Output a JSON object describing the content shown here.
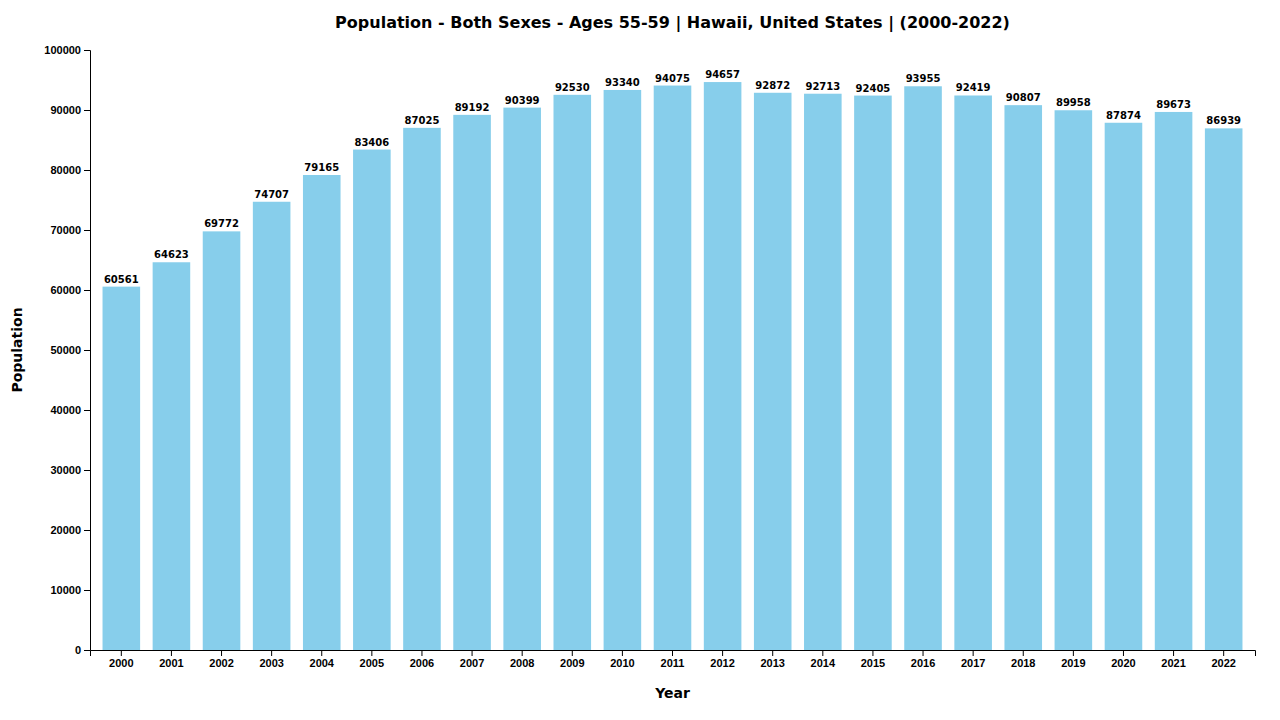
{
  "chart_data": {
    "type": "bar",
    "title": "Population - Both Sexes - Ages 55-59 | Hawaii, United States |  (2000-2022)",
    "xlabel": "Year",
    "ylabel": "Population",
    "categories": [
      "2000",
      "2001",
      "2002",
      "2003",
      "2004",
      "2005",
      "2006",
      "2007",
      "2008",
      "2009",
      "2010",
      "2011",
      "2012",
      "2013",
      "2014",
      "2015",
      "2016",
      "2017",
      "2018",
      "2019",
      "2020",
      "2021",
      "2022"
    ],
    "values": [
      60561,
      64623,
      69772,
      74707,
      79165,
      83406,
      87025,
      89192,
      90399,
      92530,
      93340,
      94075,
      94657,
      92872,
      92713,
      92405,
      93955,
      92419,
      90807,
      89958,
      87874,
      89673,
      86939
    ],
    "color": "#87ceeb",
    "ylim": [
      0,
      100000
    ],
    "yticks": [
      0,
      10000,
      20000,
      30000,
      40000,
      50000,
      60000,
      70000,
      80000,
      90000,
      100000
    ],
    "grid": false,
    "data_labels": true
  }
}
